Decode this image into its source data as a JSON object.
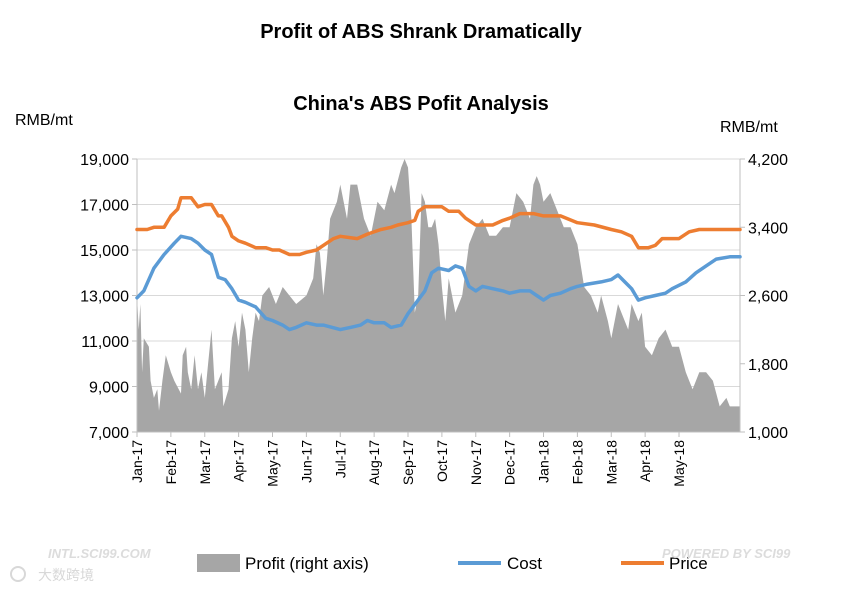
{
  "chart_data": {
    "type": "area+line",
    "title": "Profit of ABS Shrank Dramatically",
    "subtitle": "China's ABS Pofit Analysis",
    "left_unit": "RMB/mt",
    "right_unit": "RMB/mt",
    "left_ticks": [
      "19,000",
      "17,000",
      "15,000",
      "13,000",
      "11,000",
      "9,000",
      "7,000"
    ],
    "right_ticks": [
      "4,200",
      "3,400",
      "2,600",
      "1,800",
      "1,000"
    ],
    "left_range": [
      7000,
      19000
    ],
    "right_range": [
      1000,
      4200
    ],
    "x_labels": [
      "Jan-17",
      "Feb-17",
      "Mar-17",
      "Apr-17",
      "May-17",
      "Jun-17",
      "Jul-17",
      "Aug-17",
      "Sep-17",
      "Oct-17",
      "Nov-17",
      "Dec-17",
      "Jan-18",
      "Feb-18",
      "Mar-18",
      "Apr-18",
      "May-18"
    ],
    "x_range_months": [
      0,
      17.8
    ],
    "series": [
      {
        "name": "Price",
        "axis": "left",
        "color": "#ed7d31",
        "points": [
          [
            0,
            15900
          ],
          [
            0.3,
            15900
          ],
          [
            0.5,
            16000
          ],
          [
            0.8,
            16000
          ],
          [
            1.0,
            16500
          ],
          [
            1.2,
            16800
          ],
          [
            1.3,
            17300
          ],
          [
            1.6,
            17300
          ],
          [
            1.8,
            16900
          ],
          [
            2.0,
            17000
          ],
          [
            2.2,
            17000
          ],
          [
            2.4,
            16500
          ],
          [
            2.5,
            16500
          ],
          [
            2.7,
            16000
          ],
          [
            2.8,
            15600
          ],
          [
            3.0,
            15400
          ],
          [
            3.2,
            15300
          ],
          [
            3.5,
            15100
          ],
          [
            3.8,
            15100
          ],
          [
            4.0,
            15000
          ],
          [
            4.2,
            15000
          ],
          [
            4.5,
            14800
          ],
          [
            4.8,
            14800
          ],
          [
            5.0,
            14900
          ],
          [
            5.3,
            15000
          ],
          [
            5.5,
            15200
          ],
          [
            5.8,
            15500
          ],
          [
            6.0,
            15600
          ],
          [
            6.5,
            15500
          ],
          [
            6.8,
            15700
          ],
          [
            7.2,
            15900
          ],
          [
            7.5,
            16000
          ],
          [
            7.7,
            16100
          ],
          [
            8.0,
            16200
          ],
          [
            8.2,
            16300
          ],
          [
            8.3,
            16700
          ],
          [
            8.5,
            16900
          ],
          [
            9.0,
            16900
          ],
          [
            9.2,
            16700
          ],
          [
            9.5,
            16700
          ],
          [
            9.7,
            16400
          ],
          [
            10.0,
            16100
          ],
          [
            10.5,
            16100
          ],
          [
            10.8,
            16300
          ],
          [
            11.0,
            16400
          ],
          [
            11.3,
            16600
          ],
          [
            11.7,
            16600
          ],
          [
            12.0,
            16500
          ],
          [
            12.5,
            16500
          ],
          [
            13.0,
            16200
          ],
          [
            13.5,
            16100
          ],
          [
            14.0,
            15900
          ],
          [
            14.3,
            15800
          ],
          [
            14.6,
            15600
          ],
          [
            14.8,
            15100
          ],
          [
            15.1,
            15100
          ],
          [
            15.3,
            15200
          ],
          [
            15.5,
            15500
          ],
          [
            15.8,
            15500
          ],
          [
            16.0,
            15500
          ],
          [
            16.3,
            15800
          ],
          [
            16.6,
            15900
          ],
          [
            17.0,
            15900
          ],
          [
            17.8,
            15900
          ]
        ]
      },
      {
        "name": "Cost",
        "axis": "left",
        "color": "#5b9bd5",
        "points": [
          [
            0,
            12900
          ],
          [
            0.2,
            13200
          ],
          [
            0.5,
            14200
          ],
          [
            0.8,
            14800
          ],
          [
            1.1,
            15300
          ],
          [
            1.3,
            15600
          ],
          [
            1.6,
            15500
          ],
          [
            1.8,
            15300
          ],
          [
            2.0,
            15000
          ],
          [
            2.2,
            14800
          ],
          [
            2.4,
            13800
          ],
          [
            2.6,
            13700
          ],
          [
            2.8,
            13300
          ],
          [
            3.0,
            12800
          ],
          [
            3.2,
            12700
          ],
          [
            3.5,
            12500
          ],
          [
            3.8,
            12000
          ],
          [
            4.0,
            11900
          ],
          [
            4.3,
            11700
          ],
          [
            4.5,
            11500
          ],
          [
            4.7,
            11600
          ],
          [
            5.0,
            11800
          ],
          [
            5.3,
            11700
          ],
          [
            5.5,
            11700
          ],
          [
            6.0,
            11500
          ],
          [
            6.3,
            11600
          ],
          [
            6.6,
            11700
          ],
          [
            6.8,
            11900
          ],
          [
            7.0,
            11800
          ],
          [
            7.3,
            11800
          ],
          [
            7.5,
            11600
          ],
          [
            7.8,
            11700
          ],
          [
            8.0,
            12200
          ],
          [
            8.2,
            12600
          ],
          [
            8.5,
            13200
          ],
          [
            8.7,
            14000
          ],
          [
            8.9,
            14200
          ],
          [
            9.2,
            14100
          ],
          [
            9.4,
            14300
          ],
          [
            9.6,
            14200
          ],
          [
            9.8,
            13400
          ],
          [
            10.0,
            13200
          ],
          [
            10.2,
            13400
          ],
          [
            10.5,
            13300
          ],
          [
            10.8,
            13200
          ],
          [
            11.0,
            13100
          ],
          [
            11.3,
            13200
          ],
          [
            11.6,
            13200
          ],
          [
            11.8,
            13000
          ],
          [
            12.0,
            12800
          ],
          [
            12.2,
            13000
          ],
          [
            12.5,
            13100
          ],
          [
            12.8,
            13300
          ],
          [
            13.0,
            13400
          ],
          [
            13.3,
            13500
          ],
          [
            13.7,
            13600
          ],
          [
            14.0,
            13700
          ],
          [
            14.2,
            13900
          ],
          [
            14.4,
            13600
          ],
          [
            14.6,
            13300
          ],
          [
            14.8,
            12800
          ],
          [
            15.0,
            12900
          ],
          [
            15.3,
            13000
          ],
          [
            15.6,
            13100
          ],
          [
            15.8,
            13300
          ],
          [
            16.2,
            13600
          ],
          [
            16.5,
            14000
          ],
          [
            16.8,
            14300
          ],
          [
            17.1,
            14600
          ],
          [
            17.5,
            14700
          ],
          [
            17.8,
            14700
          ]
        ]
      },
      {
        "name": "Profit (right axis)",
        "axis": "right",
        "color": "#a6a6a6",
        "points": [
          [
            0,
            2600
          ],
          [
            0.05,
            2200
          ],
          [
            0.1,
            2500
          ],
          [
            0.15,
            1700
          ],
          [
            0.2,
            2100
          ],
          [
            0.35,
            2000
          ],
          [
            0.4,
            1600
          ],
          [
            0.5,
            1400
          ],
          [
            0.6,
            1500
          ],
          [
            0.65,
            1250
          ],
          [
            0.75,
            1600
          ],
          [
            0.85,
            1900
          ],
          [
            1.0,
            1700
          ],
          [
            1.1,
            1600
          ],
          [
            1.3,
            1450
          ],
          [
            1.35,
            1900
          ],
          [
            1.45,
            2000
          ],
          [
            1.5,
            1700
          ],
          [
            1.6,
            1500
          ],
          [
            1.7,
            1900
          ],
          [
            1.8,
            1500
          ],
          [
            1.9,
            1700
          ],
          [
            2.0,
            1400
          ],
          [
            2.1,
            1800
          ],
          [
            2.2,
            2200
          ],
          [
            2.3,
            1500
          ],
          [
            2.4,
            1600
          ],
          [
            2.5,
            1700
          ],
          [
            2.55,
            1300
          ],
          [
            2.7,
            1500
          ],
          [
            2.8,
            2100
          ],
          [
            2.9,
            2300
          ],
          [
            3.0,
            2000
          ],
          [
            3.1,
            2400
          ],
          [
            3.2,
            2200
          ],
          [
            3.3,
            1700
          ],
          [
            3.4,
            2100
          ],
          [
            3.5,
            2400
          ],
          [
            3.6,
            2300
          ],
          [
            3.7,
            2600
          ],
          [
            3.9,
            2700
          ],
          [
            4.1,
            2500
          ],
          [
            4.3,
            2700
          ],
          [
            4.5,
            2600
          ],
          [
            4.7,
            2500
          ],
          [
            5.0,
            2600
          ],
          [
            5.2,
            2800
          ],
          [
            5.3,
            3200
          ],
          [
            5.4,
            3100
          ],
          [
            5.5,
            2600
          ],
          [
            5.6,
            3000
          ],
          [
            5.7,
            3500
          ],
          [
            5.9,
            3700
          ],
          [
            6.0,
            3900
          ],
          [
            6.2,
            3500
          ],
          [
            6.3,
            3900
          ],
          [
            6.5,
            3900
          ],
          [
            6.7,
            3500
          ],
          [
            6.9,
            3300
          ],
          [
            7.1,
            3700
          ],
          [
            7.3,
            3600
          ],
          [
            7.5,
            3900
          ],
          [
            7.6,
            3800
          ],
          [
            7.8,
            4100
          ],
          [
            7.9,
            4200
          ],
          [
            8.0,
            4100
          ],
          [
            8.1,
            3500
          ],
          [
            8.2,
            2400
          ],
          [
            8.3,
            2600
          ],
          [
            8.4,
            3800
          ],
          [
            8.5,
            3700
          ],
          [
            8.6,
            3400
          ],
          [
            8.7,
            3400
          ],
          [
            8.8,
            3500
          ],
          [
            8.9,
            3200
          ],
          [
            9.0,
            2700
          ],
          [
            9.1,
            2300
          ],
          [
            9.2,
            2800
          ],
          [
            9.4,
            2400
          ],
          [
            9.6,
            2600
          ],
          [
            9.8,
            3200
          ],
          [
            10.0,
            3400
          ],
          [
            10.2,
            3500
          ],
          [
            10.4,
            3300
          ],
          [
            10.6,
            3300
          ],
          [
            10.8,
            3400
          ],
          [
            11.0,
            3400
          ],
          [
            11.2,
            3800
          ],
          [
            11.4,
            3700
          ],
          [
            11.6,
            3500
          ],
          [
            11.7,
            3900
          ],
          [
            11.8,
            4000
          ],
          [
            11.9,
            3900
          ],
          [
            12.0,
            3700
          ],
          [
            12.2,
            3800
          ],
          [
            12.4,
            3600
          ],
          [
            12.6,
            3400
          ],
          [
            12.8,
            3400
          ],
          [
            13.0,
            3200
          ],
          [
            13.2,
            2700
          ],
          [
            13.4,
            2600
          ],
          [
            13.6,
            2400
          ],
          [
            13.7,
            2600
          ],
          [
            13.9,
            2300
          ],
          [
            14.0,
            2100
          ],
          [
            14.2,
            2500
          ],
          [
            14.3,
            2400
          ],
          [
            14.5,
            2200
          ],
          [
            14.6,
            2500
          ],
          [
            14.8,
            2300
          ],
          [
            14.9,
            2400
          ],
          [
            15.0,
            2000
          ],
          [
            15.2,
            1900
          ],
          [
            15.4,
            2100
          ],
          [
            15.6,
            2200
          ],
          [
            15.8,
            2000
          ],
          [
            16.0,
            2000
          ],
          [
            16.2,
            1700
          ],
          [
            16.4,
            1500
          ],
          [
            16.6,
            1700
          ],
          [
            16.8,
            1700
          ],
          [
            17.0,
            1600
          ],
          [
            17.2,
            1300
          ],
          [
            17.4,
            1400
          ],
          [
            17.5,
            1300
          ],
          [
            17.8,
            1300
          ]
        ]
      }
    ],
    "legend": [
      "Profit (right axis)",
      "Cost",
      "Price"
    ],
    "legend_position": "bottom"
  },
  "watermarks": {
    "left": "INTL.SCI99.COM",
    "right": "POWERED BY SCI99",
    "logo": "大数跨境"
  }
}
